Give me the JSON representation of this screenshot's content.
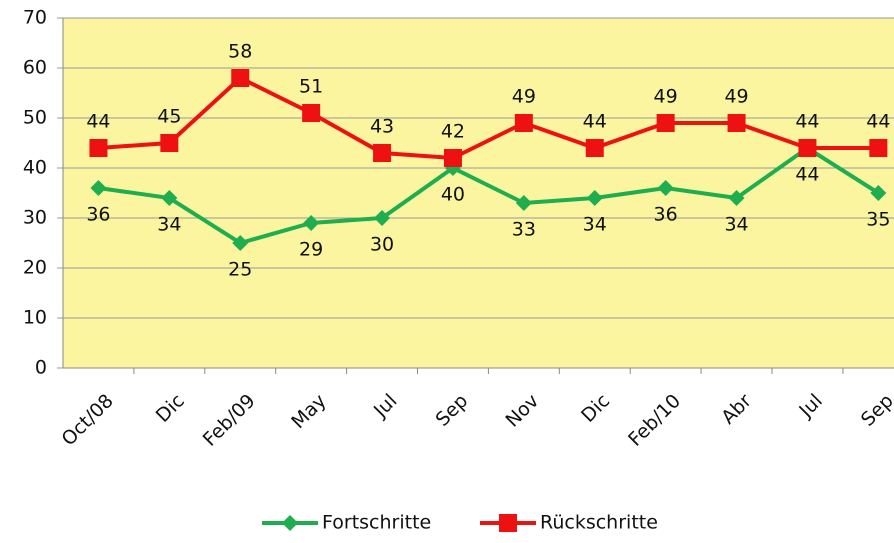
{
  "chart_data": {
    "type": "line",
    "categories": [
      "Oct/08",
      "Dic",
      "Feb/09",
      "May",
      "Jul",
      "Sep",
      "Nov",
      "Dic",
      "Feb/10",
      "Abr",
      "Jul",
      "Sep"
    ],
    "series": [
      {
        "name": "Fortschritte",
        "color": "#1fae4f",
        "marker": "diamond",
        "values": [
          36,
          34,
          25,
          29,
          30,
          40,
          33,
          34,
          36,
          34,
          44,
          35
        ]
      },
      {
        "name": "Rückschritte",
        "color": "#ee1111",
        "marker": "square",
        "values": [
          44,
          45,
          58,
          51,
          43,
          42,
          49,
          44,
          49,
          49,
          44,
          44
        ]
      }
    ],
    "ylim": [
      0,
      70
    ],
    "yticks": [
      0,
      10,
      20,
      30,
      40,
      50,
      60,
      70
    ],
    "grid": true,
    "legend": "bottom"
  }
}
